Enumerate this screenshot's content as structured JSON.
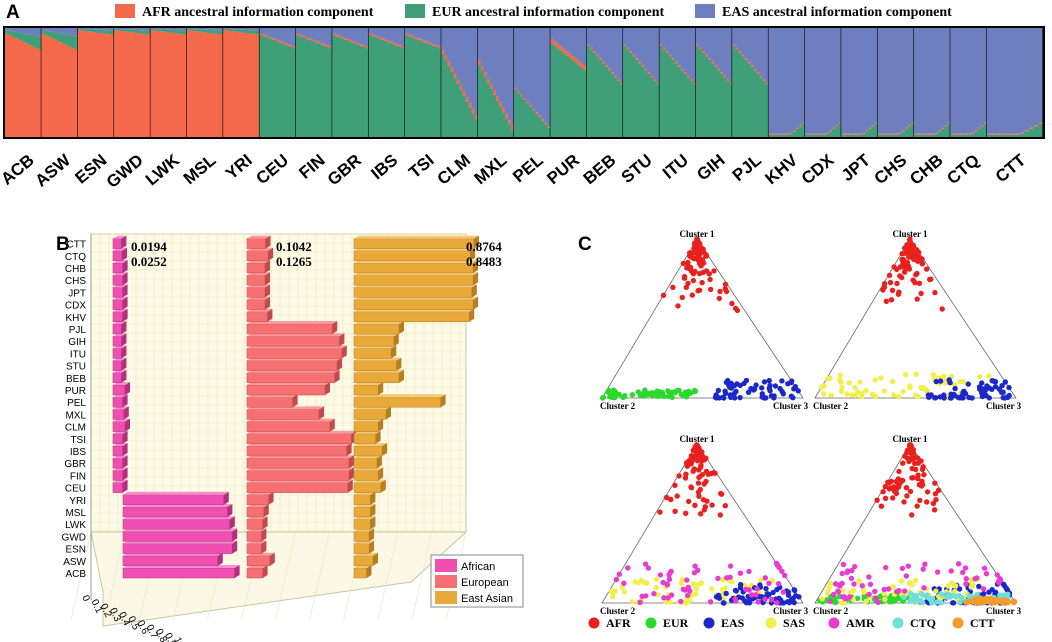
{
  "panels": {
    "a": "A",
    "b": "B",
    "c": "C"
  },
  "colors": {
    "afr": "#f4694a",
    "eur": "#3e9f78",
    "eas": "#6e7fc0",
    "african": "#ef4fb0",
    "european": "#f67073",
    "east_asian": "#e8a93a"
  },
  "chart_data": [
    {
      "type": "area",
      "id": "A",
      "title": "Ancestral information components",
      "legend": [
        "AFR ancestral information component",
        "EUR ancestral information component",
        "EAS ancestral information component"
      ],
      "populations": [
        "ACB",
        "ASW",
        "ESN",
        "GWD",
        "LWK",
        "MSL",
        "YRI",
        "CEU",
        "FIN",
        "GBR",
        "IBS",
        "TSI",
        "CLM",
        "MXL",
        "PEL",
        "PUR",
        "BEB",
        "STU",
        "ITU",
        "GIH",
        "PJL",
        "KHV",
        "CDX",
        "JPT",
        "CHS",
        "CHB",
        "CTQ",
        "CTT"
      ],
      "dominant": [
        "AFR",
        "AFR",
        "AFR",
        "AFR",
        "AFR",
        "AFR",
        "AFR",
        "EUR",
        "EUR",
        "EUR",
        "EUR",
        "EUR",
        "EUR",
        "EUR",
        "EUR",
        "EUR",
        "EUR",
        "EUR",
        "EUR",
        "EUR",
        "EUR",
        "EAS",
        "EAS",
        "EAS",
        "EAS",
        "EAS",
        "EAS",
        "EAS"
      ]
    },
    {
      "type": "bar",
      "id": "B",
      "orientation": "horizontal-3d",
      "categories": [
        "ACB",
        "ASW",
        "ESN",
        "GWD",
        "LWK",
        "MSL",
        "YRI",
        "CEU",
        "FIN",
        "GBR",
        "IBS",
        "TSI",
        "CLM",
        "MXL",
        "PEL",
        "PUR",
        "BEB",
        "STU",
        "ITU",
        "GIH",
        "PJL",
        "KHV",
        "CDX",
        "JPT",
        "CHS",
        "CHB",
        "CTQ",
        "CTT"
      ],
      "series": [
        {
          "name": "African",
          "values": [
            0.88,
            0.74,
            0.86,
            0.86,
            0.84,
            0.82,
            0.79,
            0.03,
            0.03,
            0.03,
            0.03,
            0.03,
            0.05,
            0.04,
            0.03,
            0.05,
            0.02,
            0.02,
            0.02,
            0.02,
            0.02,
            0.03,
            0.03,
            0.03,
            0.03,
            0.03,
            0.0252,
            0.0194
          ]
        },
        {
          "name": "European",
          "values": [
            0.08,
            0.14,
            0.07,
            0.07,
            0.08,
            0.09,
            0.13,
            0.79,
            0.8,
            0.8,
            0.78,
            0.82,
            0.64,
            0.55,
            0.33,
            0.6,
            0.68,
            0.7,
            0.74,
            0.72,
            0.66,
            0.12,
            0.1,
            0.1,
            0.1,
            0.1,
            0.1265,
            0.1042
          ]
        },
        {
          "name": "East Asian",
          "values": [
            0.05,
            0.1,
            0.07,
            0.07,
            0.08,
            0.08,
            0.08,
            0.16,
            0.14,
            0.13,
            0.17,
            0.12,
            0.14,
            0.2,
            0.62,
            0.14,
            0.3,
            0.28,
            0.24,
            0.26,
            0.3,
            0.84,
            0.87,
            0.86,
            0.87,
            0.87,
            0.8483,
            0.8764
          ]
        }
      ],
      "annotations": {
        "african": [
          "0.0194",
          "0.0252"
        ],
        "european": [
          "0.1042",
          "0.1265"
        ],
        "east_asian": [
          "0.8764",
          "0.8483"
        ]
      },
      "x_ticks": [
        "0",
        "0.1",
        "0.2",
        "0.3",
        "0.4",
        "0.5",
        "0.6",
        "0.7",
        "0.8",
        "0.9",
        "1.0"
      ],
      "xlim": [
        0,
        1
      ],
      "legend": [
        "African",
        "European",
        "East Asian"
      ]
    },
    {
      "type": "scatter",
      "id": "C",
      "subtype": "ternary",
      "vertex_labels": {
        "top": "Cluster 1",
        "left": "Cluster 2",
        "right": "Cluster 3"
      },
      "legend": [
        {
          "name": "AFR",
          "color": "#e8211f"
        },
        {
          "name": "EUR",
          "color": "#2bd92b"
        },
        {
          "name": "EAS",
          "color": "#1d28c9"
        },
        {
          "name": "SAS",
          "color": "#f2ee4b"
        },
        {
          "name": "AMR",
          "color": "#e83bd2"
        },
        {
          "name": "CTQ",
          "color": "#6fe0d6"
        },
        {
          "name": "CTT",
          "color": "#f39a2a"
        }
      ],
      "subplots": [
        [
          "AFR",
          "EUR",
          "EAS"
        ],
        [
          "AFR",
          "SAS",
          "EAS"
        ],
        [
          "AFR",
          "SAS",
          "EAS",
          "AMR"
        ],
        [
          "AFR",
          "EUR",
          "EAS",
          "SAS",
          "AMR",
          "CTQ",
          "CTT"
        ]
      ]
    }
  ]
}
